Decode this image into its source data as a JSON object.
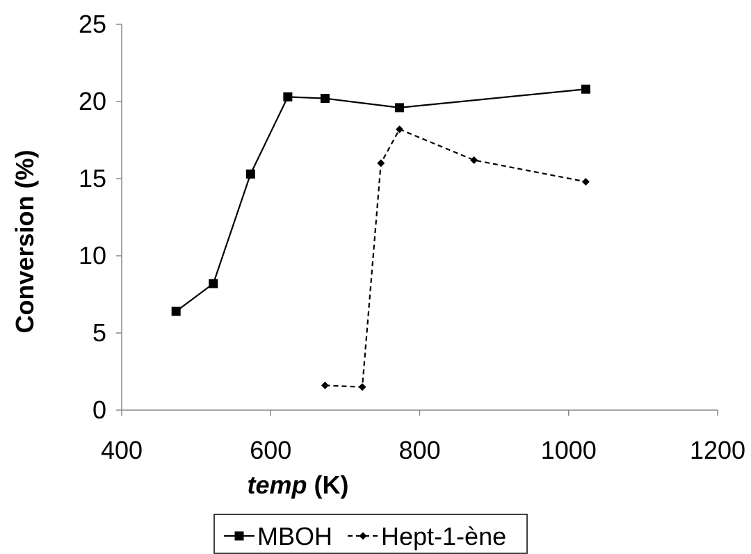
{
  "chart_data": {
    "type": "line",
    "title": "",
    "xlabel": {
      "italic_part": "temp",
      "rest": " (K)"
    },
    "ylabel": "Conversion (%)",
    "xlim": [
      400,
      1200
    ],
    "ylim": [
      0,
      25
    ],
    "xticks": [
      400,
      600,
      800,
      1000,
      1200
    ],
    "yticks": [
      0,
      5,
      10,
      15,
      20,
      25
    ],
    "grid": false,
    "legend_position": "bottom",
    "series": [
      {
        "name": "MBOH",
        "marker": "square",
        "line_style": "solid",
        "color": "#000000",
        "points": [
          [
            473,
            6.4
          ],
          [
            523,
            8.2
          ],
          [
            573,
            15.3
          ],
          [
            623,
            20.3
          ],
          [
            673,
            20.2
          ],
          [
            773,
            19.6
          ],
          [
            1023,
            20.8
          ]
        ]
      },
      {
        "name": "Hept-1-ène",
        "marker": "diamond",
        "line_style": "dashed",
        "color": "#000000",
        "points": [
          [
            673,
            1.6
          ],
          [
            723,
            1.5
          ],
          [
            748,
            16.0
          ],
          [
            773,
            18.2
          ],
          [
            873,
            16.2
          ],
          [
            1023,
            14.8
          ]
        ]
      }
    ]
  }
}
